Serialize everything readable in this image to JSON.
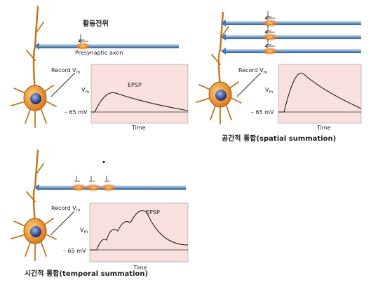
{
  "panels": [
    {
      "title": "활동전위",
      "axon_label": "Presynaptic axon",
      "record_label": "Record V",
      "record_subscript": "m",
      "y_label": "V",
      "y_subscript": "m",
      "curve_label": "EPSP",
      "rest_label": "– 65 mV",
      "x_label": "Time"
    },
    {
      "record_label": "Record V",
      "record_subscript": "m",
      "y_label": "V",
      "y_subscript": "m",
      "rest_label": "– 65 mV",
      "x_label": "Time",
      "caption": "공간적 통합(spatial summation)"
    },
    {
      "record_label": "Record V",
      "record_subscript": "m",
      "y_label": "V",
      "y_subscript": "m",
      "curve_label": "EPSP",
      "rest_label": "– 65 mV",
      "x_label": "Time",
      "caption": "시간적 통합(temporal summation)"
    }
  ]
}
